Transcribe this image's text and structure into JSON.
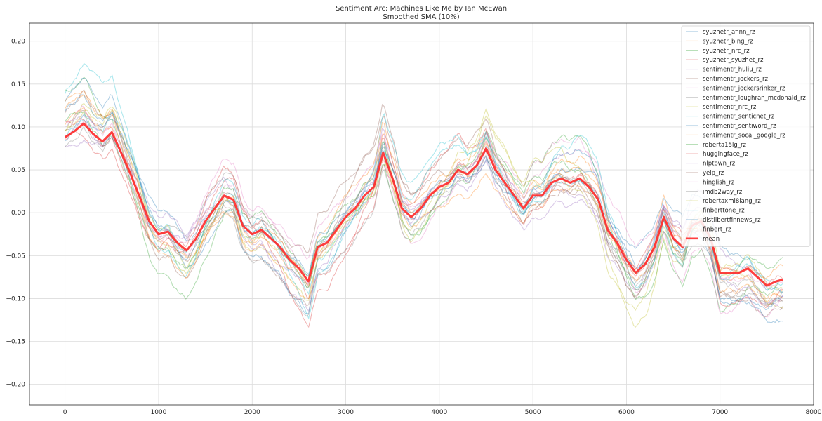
{
  "chart_data": {
    "type": "line",
    "title": "Sentiment Arc: Machines Like Me by Ian McEwan",
    "subtitle": "Smoothed SMA (10%)",
    "xlabel": "",
    "ylabel": "",
    "xlim": [
      -380,
      8000
    ],
    "ylim": [
      -0.224,
      0.221
    ],
    "xticks": [
      0,
      1000,
      2000,
      3000,
      4000,
      5000,
      6000,
      7000,
      8000
    ],
    "yticks": [
      -0.2,
      -0.15,
      -0.1,
      -0.05,
      0.0,
      0.05,
      0.1,
      0.15,
      0.2
    ],
    "xtick_labels": [
      "0",
      "1000",
      "2000",
      "3000",
      "4000",
      "5000",
      "6000",
      "7000",
      "8000"
    ],
    "ytick_labels": [
      "−0.20",
      "−0.15",
      "−0.10",
      "−0.05",
      "0.00",
      "0.05",
      "0.10",
      "0.15",
      "0.20"
    ],
    "grid": true,
    "legend_position": "top-right",
    "x_extent": [
      0,
      7670
    ],
    "mean_series": {
      "name": "mean",
      "color": "#ff2a2a",
      "x": [
        0,
        100,
        200,
        300,
        400,
        500,
        600,
        700,
        800,
        900,
        1000,
        1100,
        1200,
        1300,
        1400,
        1500,
        1600,
        1700,
        1800,
        1900,
        2000,
        2100,
        2200,
        2300,
        2400,
        2500,
        2600,
        2700,
        2800,
        2900,
        3000,
        3100,
        3200,
        3300,
        3400,
        3500,
        3600,
        3700,
        3800,
        3900,
        4000,
        4100,
        4200,
        4300,
        4400,
        4500,
        4600,
        4700,
        4800,
        4900,
        5000,
        5100,
        5200,
        5300,
        5400,
        5500,
        5600,
        5700,
        5800,
        5900,
        6000,
        6100,
        6200,
        6300,
        6400,
        6500,
        6600,
        6700,
        6800,
        6900,
        7000,
        7100,
        7200,
        7300,
        7400,
        7500,
        7600,
        7670
      ],
      "values": [
        0.088,
        0.095,
        0.104,
        0.092,
        0.083,
        0.094,
        0.07,
        0.045,
        0.018,
        -0.01,
        -0.025,
        -0.022,
        -0.035,
        -0.044,
        -0.03,
        -0.01,
        0.005,
        0.02,
        0.015,
        -0.015,
        -0.025,
        -0.02,
        -0.03,
        -0.04,
        -0.055,
        -0.065,
        -0.08,
        -0.04,
        -0.035,
        -0.02,
        -0.005,
        0.005,
        0.02,
        0.03,
        0.07,
        0.04,
        0.005,
        -0.005,
        0.005,
        0.02,
        0.03,
        0.035,
        0.05,
        0.045,
        0.055,
        0.075,
        0.05,
        0.035,
        0.02,
        0.005,
        0.02,
        0.02,
        0.035,
        0.04,
        0.035,
        0.04,
        0.03,
        0.015,
        -0.02,
        -0.035,
        -0.055,
        -0.07,
        -0.06,
        -0.04,
        -0.005,
        -0.03,
        -0.04,
        -0.015,
        -0.01,
        -0.03,
        -0.07,
        -0.07,
        -0.07,
        -0.065,
        -0.075,
        -0.085,
        -0.08,
        -0.078
      ]
    },
    "series": [
      {
        "name": "syuzhetr_afinn_rz",
        "color": "#1f77b4"
      },
      {
        "name": "syuzhetr_bing_rz",
        "color": "#ff7f0e"
      },
      {
        "name": "syuzhetr_nrc_rz",
        "color": "#2ca02c"
      },
      {
        "name": "syuzhetr_syuzhet_rz",
        "color": "#d62728"
      },
      {
        "name": "sentimentr_huliu_rz",
        "color": "#9467bd"
      },
      {
        "name": "sentimentr_jockers_rz",
        "color": "#8c564b"
      },
      {
        "name": "sentimentr_jockersrinker_rz",
        "color": "#e377c2"
      },
      {
        "name": "sentimentr_loughran_mcdonald_rz",
        "color": "#7f7f7f"
      },
      {
        "name": "sentimentr_nrc_rz",
        "color": "#bcbd22"
      },
      {
        "name": "sentimentr_senticnet_rz",
        "color": "#17becf"
      },
      {
        "name": "sentimentr_sentiword_rz",
        "color": "#1f77b4"
      },
      {
        "name": "sentimentr_socal_google_rz",
        "color": "#ff7f0e"
      },
      {
        "name": "roberta15lg_rz",
        "color": "#2ca02c"
      },
      {
        "name": "huggingface_rz",
        "color": "#d62728"
      },
      {
        "name": "nlptown_rz",
        "color": "#9467bd"
      },
      {
        "name": "yelp_rz",
        "color": "#8c564b"
      },
      {
        "name": "hinglish_rz",
        "color": "#e377c2"
      },
      {
        "name": "imdb2way_rz",
        "color": "#7f7f7f"
      },
      {
        "name": "robertaxml8lang_rz",
        "color": "#bcbd22"
      },
      {
        "name": "finberttone_rz",
        "color": "#17becf"
      },
      {
        "name": "distilbertfinnews_rz",
        "color": "#1f77b4"
      },
      {
        "name": "finbert_rz",
        "color": "#ff7f0e"
      }
    ]
  }
}
